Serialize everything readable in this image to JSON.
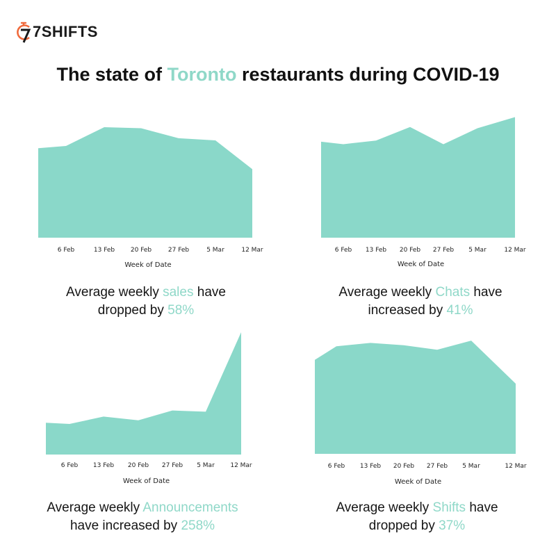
{
  "logo": {
    "text": "7SHIFTS",
    "mark_color": "#f06a3c"
  },
  "headline": {
    "before": "The state of ",
    "highlight": "Toronto",
    "after": " restaurants during COVID-19"
  },
  "colors": {
    "accent": "#8fd8c8",
    "area_fill": "#8ad8c9",
    "text": "#111111"
  },
  "chart_data": [
    {
      "type": "area",
      "categories": [
        "6 Feb",
        "13 Feb",
        "20 Feb",
        "27 Feb",
        "5 Mar",
        "12 Mar"
      ],
      "x": [
        "3 Feb",
        "6 Feb",
        "13 Feb",
        "20 Feb",
        "27 Feb",
        "5 Mar",
        "12 Mar"
      ],
      "values": [
        0.81,
        0.83,
        1.0,
        0.99,
        0.9,
        0.88,
        0.62
      ],
      "xlabel": "Week of Date",
      "ylabel": "",
      "ylim": [
        0,
        1.05
      ],
      "grid": false,
      "caption": {
        "line1_before": "Average weekly ",
        "line1_highlight": "sales",
        "line1_after": " have",
        "line2_before": "dropped by ",
        "line2_highlight": "58%"
      }
    },
    {
      "type": "area",
      "categories": [
        "6 Feb",
        "13 Feb",
        "20 Feb",
        "27 Feb",
        "5 Mar",
        "12 Mar"
      ],
      "x": [
        "3 Feb",
        "6 Feb",
        "13 Feb",
        "20 Feb",
        "27 Feb",
        "5 Mar",
        "12 Mar"
      ],
      "values": [
        0.78,
        0.76,
        0.79,
        0.9,
        0.76,
        0.89,
        0.98
      ],
      "xlabel": "Week of Date",
      "ylabel": "",
      "ylim": [
        0,
        1.0
      ],
      "grid": false,
      "caption": {
        "line1_before": "Average weekly ",
        "line1_highlight": "Chats",
        "line1_after": " have",
        "line2_before": "increased by ",
        "line2_highlight": "41%"
      }
    },
    {
      "type": "area",
      "categories": [
        "6 Feb",
        "13 Feb",
        "20 Feb",
        "27 Feb",
        "5 Mar",
        "12 Mar"
      ],
      "x": [
        "1 Feb",
        "6 Feb",
        "13 Feb",
        "20 Feb",
        "27 Feb",
        "5 Mar",
        "12 Mar"
      ],
      "values": [
        0.26,
        0.25,
        0.31,
        0.28,
        0.36,
        0.35,
        1.0
      ],
      "xlabel": "Week of Date",
      "ylabel": "",
      "ylim": [
        0,
        1.0
      ],
      "grid": false,
      "caption": {
        "line1_before": "Average weekly ",
        "line1_highlight": "Announcements",
        "line1_after": "",
        "line2_before": "have increased by ",
        "line2_highlight": "258%"
      }
    },
    {
      "type": "area",
      "categories": [
        "6 Feb",
        "13 Feb",
        "20 Feb",
        "27 Feb",
        "5 Mar",
        "12 Mar"
      ],
      "x": [
        "1 Feb",
        "6 Feb",
        "13 Feb",
        "20 Feb",
        "27 Feb",
        "5 Mar",
        "12 Mar"
      ],
      "values": [
        0.83,
        0.95,
        0.98,
        0.96,
        0.92,
        1.0,
        0.62
      ],
      "xlabel": "Week of Date",
      "ylabel": "",
      "ylim": [
        0,
        1.05
      ],
      "grid": false,
      "caption": {
        "line1_before": "Average weekly ",
        "line1_highlight": "Shifts",
        "line1_after": " have",
        "line2_before": "dropped by ",
        "line2_highlight": "37%"
      }
    }
  ]
}
